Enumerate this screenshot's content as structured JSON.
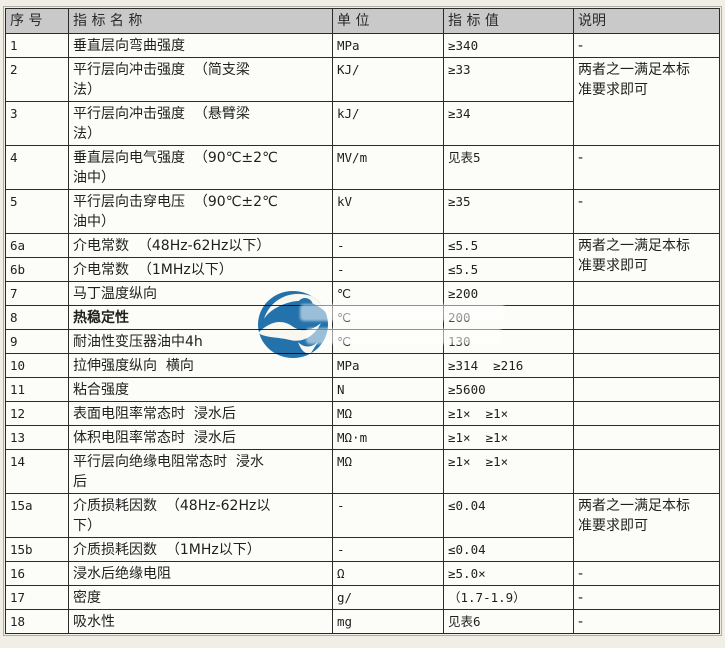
{
  "page": {
    "background": "#f0eee5"
  },
  "colors": {
    "header_bg": "#c9c9c9",
    "cell_bg": "#fcfcf8",
    "grid": "#2b2b2b",
    "outer_frame": "#aeaea6",
    "text": "#1f1f1f",
    "logo_blue": "#1a6dad"
  },
  "watermark": {
    "logo_icon": "blue-swirl-logo"
  },
  "table": {
    "headers": [
      "序 号",
      "指 标 名 称",
      "单 位",
      "指 标 值",
      "说明"
    ],
    "rows": [
      {
        "num": "1",
        "name": "垂直层向弯曲强度",
        "unit": "MPa",
        "value": "≥340",
        "desc": "-"
      },
      {
        "num": "2",
        "name": "平行层向冲击强度  （简支梁\n法）",
        "unit": "KJ/",
        "value": "≥33",
        "desc": "两者之一满足本标\n准要求即可",
        "desc_rowspan": 2
      },
      {
        "num": "3",
        "name": "平行层向冲击强度  （悬臂梁\n法）",
        "unit": "kJ/",
        "value": "≥34",
        "desc": null
      },
      {
        "num": "4",
        "name": "垂直层向电气强度  （90℃±2℃\n油中）",
        "unit": "MV/m",
        "value": "见表5",
        "desc": "-"
      },
      {
        "num": "5",
        "name": "平行层向击穿电压  （90℃±2℃\n油中）",
        "unit": "kV",
        "value": "≥35",
        "desc": "-"
      },
      {
        "num": "6a",
        "name": "介电常数  （48Hz-62Hz以下）",
        "unit": "-",
        "value": "≤5.5",
        "desc": "两者之一满足本标\n准要求即可",
        "desc_rowspan": 2
      },
      {
        "num": "6b",
        "name": "介电常数  （1MHz以下）",
        "unit": "-",
        "value": "≤5.5",
        "desc": null
      },
      {
        "num": "7",
        "name": "马丁温度纵向",
        "unit": "℃",
        "value": "≥200",
        "desc": ""
      },
      {
        "num": "8",
        "name": "热稳定性",
        "bold": true,
        "unit": "℃",
        "value": "200",
        "desc": ""
      },
      {
        "num": "9",
        "name": "耐油性变压器油中4h",
        "unit": "℃",
        "value": "130",
        "desc": ""
      },
      {
        "num": "10",
        "name": "拉伸强度纵向  横向",
        "unit": "MPa",
        "value": "≥314  ≥216",
        "desc": ""
      },
      {
        "num": "11",
        "name": "粘合强度",
        "unit": "N",
        "value": "≥5600",
        "desc": ""
      },
      {
        "num": "12",
        "name": "表面电阻率常态时  浸水后",
        "unit": "MΩ",
        "value": "≥1×  ≥1×",
        "desc": ""
      },
      {
        "num": "13",
        "name": "体积电阻率常态时  浸水后",
        "unit": "MΩ·m",
        "value": "≥1×  ≥1×",
        "desc": ""
      },
      {
        "num": "14",
        "name": "平行层向绝缘电阻常态时  浸水\n后",
        "unit": "MΩ",
        "value": "≥1×  ≥1×",
        "desc": ""
      },
      {
        "num": "15a",
        "name": "介质损耗因数  （48Hz-62Hz以\n下）",
        "unit": "-",
        "value": "≤0.04",
        "desc": "两者之一满足本标\n准要求即可",
        "desc_rowspan": 2
      },
      {
        "num": "15b",
        "name": "介质损耗因数  （1MHz以下）",
        "unit": "-",
        "value": "≤0.04",
        "desc": null
      },
      {
        "num": "16",
        "name": "浸水后绝缘电阻",
        "unit": "Ω",
        "value": "≥5.0×",
        "desc": "-"
      },
      {
        "num": "17",
        "name": "密度",
        "unit": "g/",
        "value": "（1.7-1.9）",
        "desc": "-"
      },
      {
        "num": "18",
        "name": "吸水性",
        "unit": "mg",
        "value": "见表6",
        "desc": "-"
      }
    ]
  }
}
